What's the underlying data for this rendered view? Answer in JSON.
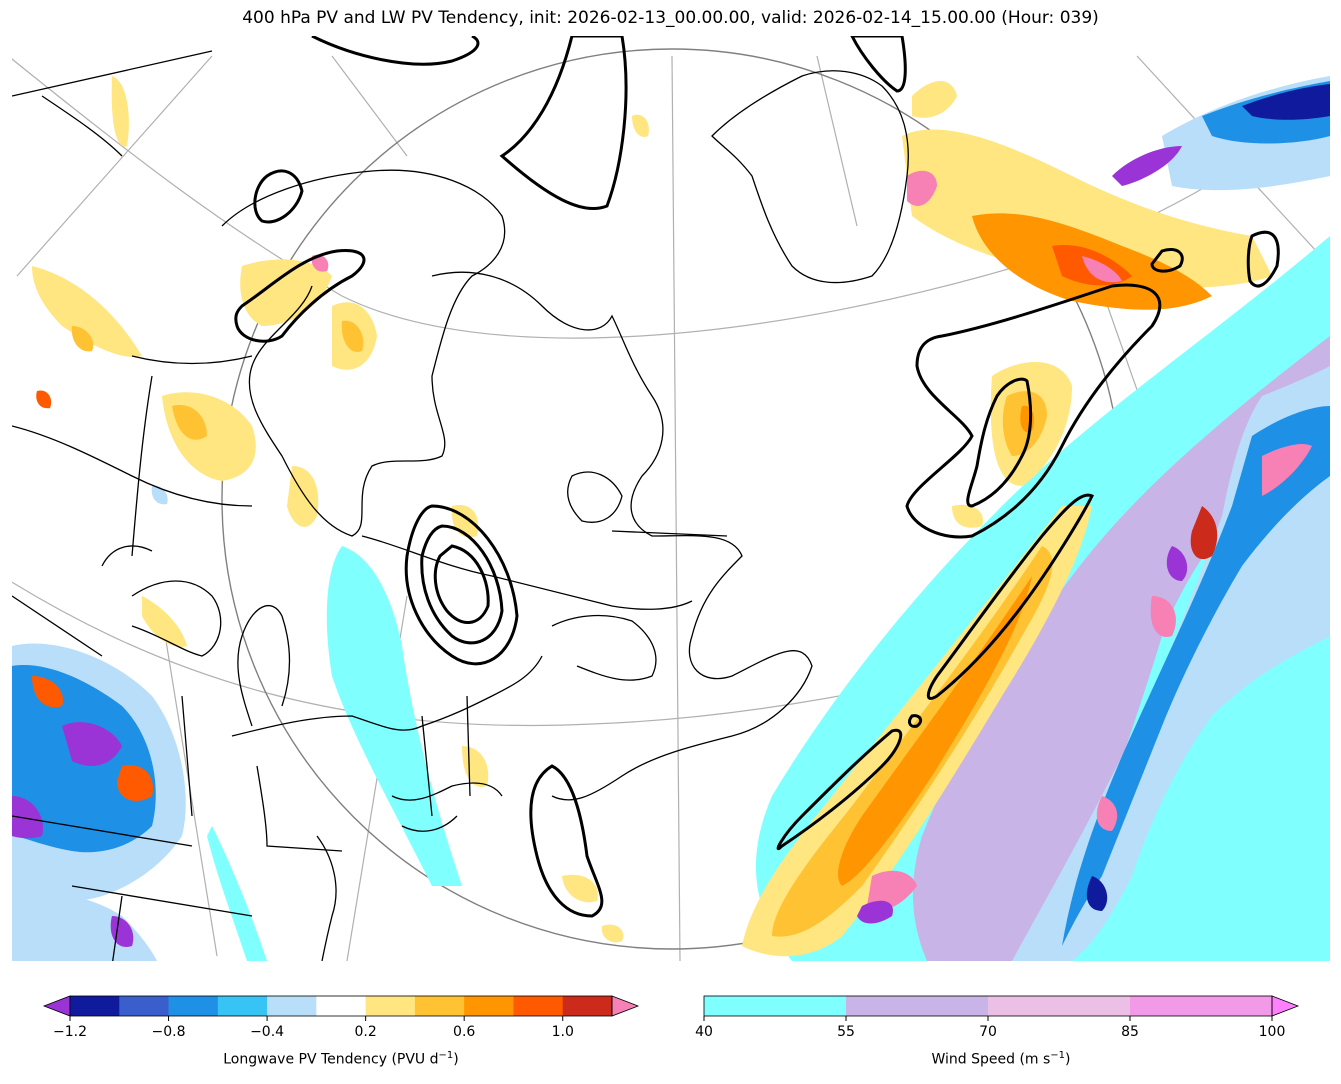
{
  "title": "400 hPa PV and LW PV Tendency, init: 2026-02-13_00.00.00, valid: 2026-02-14_15.00.00 (Hour: 039)",
  "colorbars": {
    "pv_tendency": {
      "label": "Longwave PV Tendency (PVU d",
      "label_sup": "−1",
      "label_end": ")",
      "extend": "both",
      "bounds": [
        -1.2,
        -1.0,
        -0.8,
        -0.6,
        -0.4,
        -0.2,
        0.2,
        0.4,
        0.6,
        0.8,
        1.0,
        1.2
      ],
      "colors": [
        "#0f1a9c",
        "#3a5fcd",
        "#1e90e6",
        "#38c3f5",
        "#b8defa",
        "#ffffff",
        "#ffe680",
        "#ffc233",
        "#ff9500",
        "#ff5a00",
        "#cc2a1a"
      ],
      "under_color": "#9b34d6",
      "over_color": "#f780b4",
      "ticks": [
        -1.2,
        -0.8,
        -0.4,
        0.2,
        0.6,
        1.0
      ],
      "tick_labels": [
        "−1.2",
        "−0.8",
        "−0.4",
        "0.2",
        "0.6",
        "1.0"
      ]
    },
    "wind_speed": {
      "label": "Wind Speed (m s",
      "label_sup": "−1",
      "label_end": ")",
      "extend": "max",
      "bounds": [
        40,
        55,
        70,
        85,
        100
      ],
      "colors": [
        "#80ffff",
        "#c8b4e6",
        "#ecbfe6",
        "#f29ae8"
      ],
      "over_color": "#ff80ff",
      "ticks": [
        40,
        55,
        70,
        85,
        100
      ],
      "tick_labels": [
        "40",
        "55",
        "70",
        "85",
        "100"
      ]
    }
  },
  "colors": {
    "coast": "#000000",
    "graticule": "#b0b0b0",
    "ring": "#808080",
    "pv_contour": "#000000"
  }
}
